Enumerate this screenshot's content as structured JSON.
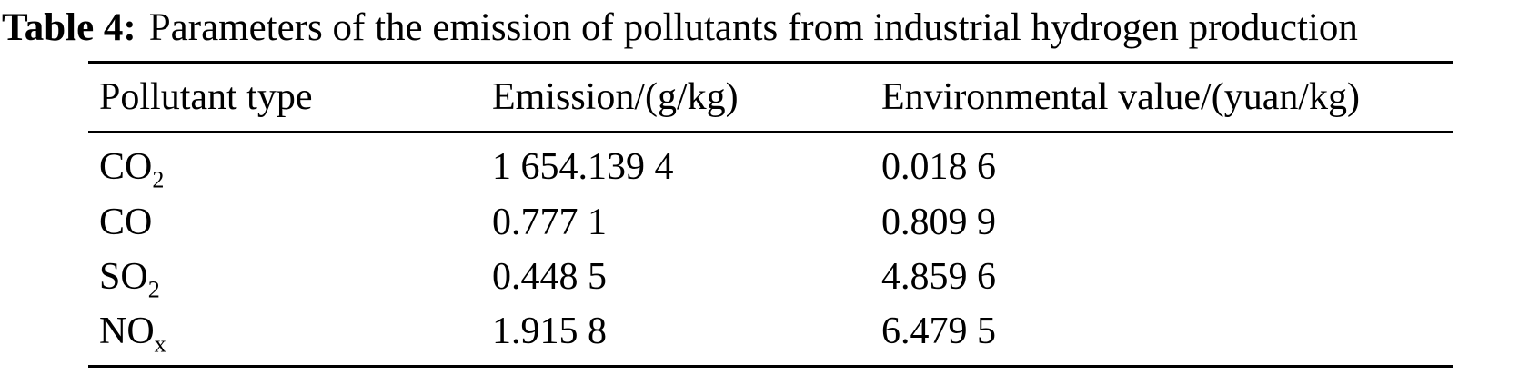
{
  "title": {
    "label": "Table 4:",
    "text": "Parameters of the emission of pollutants from industrial hydrogen production"
  },
  "table": {
    "headers": [
      "Pollutant type",
      "Emission/(g/kg)",
      "Environmental value/(yuan/kg)"
    ],
    "rows": [
      {
        "pollutant": {
          "base": "CO",
          "sub": "2"
        },
        "emission": "1 654.139 4",
        "env_value": "0.018 6"
      },
      {
        "pollutant": {
          "base": "CO",
          "sub": ""
        },
        "emission": "0.777 1",
        "env_value": "0.809 9"
      },
      {
        "pollutant": {
          "base": "SO",
          "sub": "2"
        },
        "emission": "0.448 5",
        "env_value": "4.859 6"
      },
      {
        "pollutant": {
          "base": "NO",
          "sub": "x"
        },
        "emission": "1.915 8",
        "env_value": "6.479 5"
      }
    ]
  },
  "chart_data": {
    "type": "table",
    "title": "Table 4: Parameters of the emission of pollutants from industrial hydrogen production",
    "columns": [
      "Pollutant type",
      "Emission/(g/kg)",
      "Environmental value/(yuan/kg)"
    ],
    "rows": [
      [
        "CO2",
        1654.1394,
        0.0186
      ],
      [
        "CO",
        0.7771,
        0.8099
      ],
      [
        "SO2",
        0.4485,
        4.8596
      ],
      [
        "NOx",
        1.9158,
        6.4795
      ]
    ]
  }
}
